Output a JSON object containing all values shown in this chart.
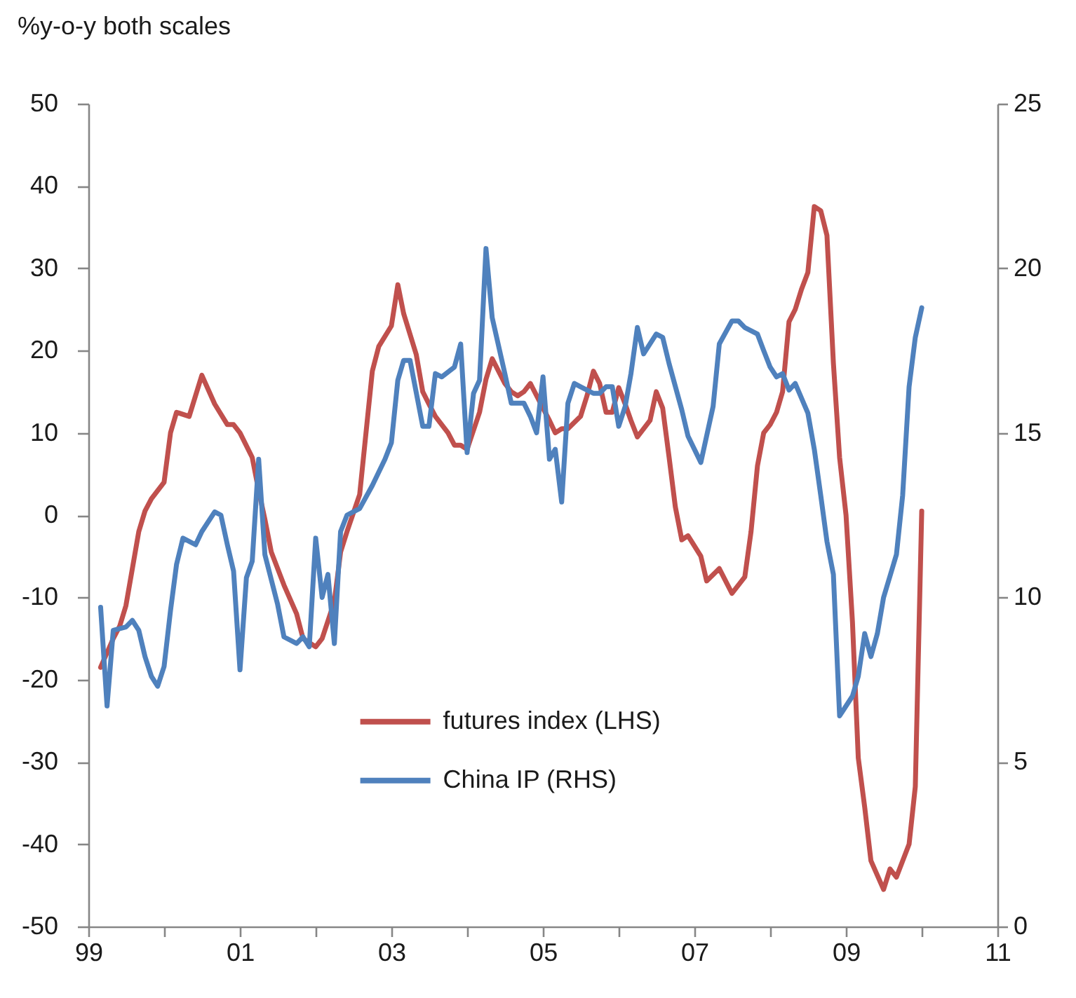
{
  "chart_data": {
    "type": "line",
    "ylabel": "%y-o-y both scales",
    "xlim": [
      "1999",
      "2011"
    ],
    "xticks": [
      {
        "value": "1999",
        "label": "99"
      },
      {
        "value": "2000",
        "label": null
      },
      {
        "value": "2001",
        "label": "01"
      },
      {
        "value": "2002",
        "label": null
      },
      {
        "value": "2003",
        "label": "03"
      },
      {
        "value": "2004",
        "label": null
      },
      {
        "value": "2005",
        "label": "05"
      },
      {
        "value": "2006",
        "label": null
      },
      {
        "value": "2007",
        "label": "07"
      },
      {
        "value": "2008",
        "label": null
      },
      {
        "value": "2009",
        "label": "09"
      },
      {
        "value": "2010",
        "label": null
      },
      {
        "value": "2011",
        "label": "11"
      }
    ],
    "ylim": [
      -50,
      50
    ],
    "yticks": [
      -50,
      -40,
      -30,
      -20,
      -10,
      0,
      10,
      20,
      30,
      40,
      50
    ],
    "y2lim": [
      0,
      25
    ],
    "y2ticks": [
      0,
      5,
      10,
      15,
      20,
      25
    ],
    "legend": "bottom",
    "series": [
      {
        "name": "futures index (LHS)",
        "color": "#c0504d",
        "x": [
          "1999-03",
          "1999-05",
          "1999-06",
          "1999-07",
          "1999-08",
          "1999-09",
          "1999-10",
          "1999-11",
          "2000-01",
          "2000-02",
          "2000-03",
          "2000-05",
          "2000-07",
          "2000-09",
          "2000-11",
          "2000-12",
          "2001-01",
          "2001-03",
          "2001-04",
          "2001-05",
          "2001-06",
          "2001-08",
          "2001-10",
          "2001-11",
          "2002-01",
          "2002-02",
          "2002-04",
          "2002-05",
          "2002-06",
          "2002-08",
          "2002-10",
          "2002-11",
          "2003-01",
          "2003-02",
          "2003-03",
          "2003-05",
          "2003-06",
          "2003-07",
          "2003-08",
          "2003-10",
          "2003-11",
          "2003-12",
          "2004-01",
          "2004-03",
          "2004-04",
          "2004-05",
          "2004-07",
          "2004-08",
          "2004-09",
          "2004-10",
          "2004-11",
          "2005-01",
          "2005-02",
          "2005-03",
          "2005-04",
          "2005-05",
          "2005-07",
          "2005-08",
          "2005-09",
          "2005-10",
          "2005-11",
          "2005-12",
          "2006-01",
          "2006-02",
          "2006-03",
          "2006-04",
          "2006-06",
          "2006-07",
          "2006-08",
          "2006-09",
          "2006-10",
          "2006-11",
          "2006-12",
          "2007-02",
          "2007-03",
          "2007-05",
          "2007-07",
          "2007-09",
          "2007-10",
          "2007-11",
          "2007-12",
          "2008-01",
          "2008-02",
          "2008-03",
          "2008-04",
          "2008-05",
          "2008-06",
          "2008-07",
          "2008-08",
          "2008-09",
          "2008-10",
          "2008-11",
          "2008-12",
          "2009-01",
          "2009-02",
          "2009-03",
          "2009-04",
          "2009-05",
          "2009-07",
          "2009-08",
          "2009-09",
          "2009-11",
          "2009-12",
          "2010-01"
        ],
        "values": [
          -18.5,
          -15,
          -13.5,
          -11,
          -6.5,
          -2,
          0.5,
          2,
          4,
          10,
          12.5,
          12,
          17,
          13.5,
          11,
          11,
          10,
          7,
          3,
          -0.5,
          -4.5,
          -8.5,
          -12,
          -15,
          -16,
          -15,
          -10.5,
          -4.5,
          -2,
          2.5,
          17.5,
          20.5,
          23,
          28,
          24.5,
          19.5,
          15,
          13.5,
          12,
          10,
          8.5,
          8.5,
          8,
          12.5,
          16.5,
          19,
          16,
          15,
          14.5,
          15,
          16,
          13,
          11.5,
          10,
          10.5,
          10.5,
          12,
          14.5,
          17.5,
          16,
          12.5,
          12.5,
          15.5,
          13.5,
          11.5,
          9.5,
          11.5,
          15,
          13,
          7,
          1,
          -3,
          -2.5,
          -5,
          -8,
          -6.5,
          -9.5,
          -7.5,
          -2,
          6,
          10,
          11,
          12.5,
          15,
          23.5,
          25,
          27.5,
          29.5,
          37.5,
          37,
          34,
          18.5,
          7,
          0,
          -13,
          -29.5,
          -35.5,
          -42,
          -45.5,
          -43,
          -44,
          -40,
          -33,
          0.5
        ]
      },
      {
        "name": "China IP (RHS)",
        "color": "#4f81bd",
        "axis": "y2",
        "x": [
          "1999-03",
          "1999-04",
          "1999-05",
          "1999-07",
          "1999-08",
          "1999-09",
          "1999-10",
          "1999-11",
          "1999-12",
          "2000-01",
          "2000-02",
          "2000-03",
          "2000-04",
          "2000-06",
          "2000-07",
          "2000-09",
          "2000-10",
          "2000-11",
          "2000-12",
          "2001-01",
          "2001-02",
          "2001-03",
          "2001-04",
          "2001-05",
          "2001-07",
          "2001-08",
          "2001-10",
          "2001-11",
          "2001-12",
          "2002-01",
          "2002-02",
          "2002-03",
          "2002-04",
          "2002-05",
          "2002-06",
          "2002-08",
          "2002-10",
          "2002-12",
          "2003-01",
          "2003-02",
          "2003-03",
          "2003-04",
          "2003-06",
          "2003-07",
          "2003-08",
          "2003-09",
          "2003-11",
          "2003-12",
          "2004-01",
          "2004-02",
          "2004-03",
          "2004-04",
          "2004-05",
          "2004-07",
          "2004-08",
          "2004-10",
          "2004-11",
          "2004-12",
          "2005-01",
          "2005-02",
          "2005-03",
          "2005-04",
          "2005-05",
          "2005-06",
          "2005-07",
          "2005-09",
          "2005-10",
          "2005-11",
          "2005-12",
          "2006-01",
          "2006-02",
          "2006-03",
          "2006-04",
          "2006-05",
          "2006-07",
          "2006-08",
          "2006-09",
          "2006-11",
          "2006-12",
          "2007-02",
          "2007-04",
          "2007-05",
          "2007-07",
          "2007-08",
          "2007-09",
          "2007-11",
          "2007-12",
          "2008-01",
          "2008-02",
          "2008-03",
          "2008-04",
          "2008-05",
          "2008-07",
          "2008-08",
          "2008-09",
          "2008-10",
          "2008-11",
          "2008-12",
          "2009-02",
          "2009-03",
          "2009-04",
          "2009-05",
          "2009-06",
          "2009-07",
          "2009-09",
          "2009-10",
          "2009-11",
          "2009-12",
          "2010-01"
        ],
        "values": [
          9.7,
          6.7,
          9.0,
          9.1,
          9.3,
          9.0,
          8.2,
          7.6,
          7.3,
          7.9,
          9.6,
          11.0,
          11.8,
          11.6,
          12.0,
          12.6,
          12.5,
          11.6,
          10.8,
          7.8,
          10.6,
          11.1,
          14.2,
          11.3,
          9.8,
          8.8,
          8.6,
          8.8,
          8.5,
          11.8,
          10.0,
          10.7,
          8.6,
          12.0,
          12.5,
          12.7,
          13.4,
          14.2,
          14.7,
          16.6,
          17.2,
          17.2,
          15.2,
          15.2,
          16.8,
          16.7,
          17.0,
          17.7,
          14.4,
          16.2,
          16.6,
          20.6,
          18.5,
          16.8,
          15.9,
          15.9,
          15.5,
          15.0,
          16.7,
          14.2,
          14.5,
          12.9,
          15.9,
          16.5,
          16.4,
          16.2,
          16.2,
          16.4,
          16.4,
          15.2,
          15.8,
          16.8,
          18.2,
          17.4,
          18.0,
          17.9,
          17.1,
          15.7,
          14.9,
          14.1,
          15.8,
          17.7,
          18.4,
          18.4,
          18.2,
          18.0,
          17.5,
          17.0,
          16.7,
          16.8,
          16.3,
          16.5,
          15.6,
          14.5,
          13.1,
          11.7,
          10.7,
          6.4,
          7.0,
          7.6,
          8.9,
          8.2,
          8.9,
          10.0,
          11.3,
          13.1,
          16.4,
          17.9,
          18.8
        ]
      }
    ]
  }
}
